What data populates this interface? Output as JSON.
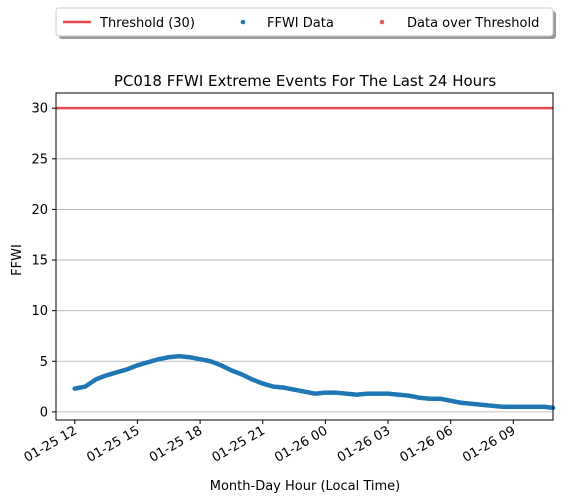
{
  "chart_data": {
    "type": "scatter",
    "title": "PC018 FFWI Extreme Events For The Last 24 Hours",
    "xlabel": "Month-Day Hour (Local Time)",
    "ylabel": "FFWI",
    "x_ticks": [
      "01-25 12",
      "01-25 15",
      "01-25 18",
      "01-25 21",
      "01-26 00",
      "01-26 03",
      "01-26 06",
      "01-26 09"
    ],
    "x_tick_hours": [
      12,
      15,
      18,
      21,
      24,
      27,
      30,
      33
    ],
    "xlim": [
      11.1,
      34.9
    ],
    "ylim": [
      -0.8,
      31.5
    ],
    "y_ticks": [
      0,
      5,
      10,
      15,
      20,
      25,
      30
    ],
    "grid": "horizontal",
    "legend": {
      "placement": "top-center",
      "entries": [
        {
          "label": "Threshold (30)",
          "kind": "line",
          "color": "#e8474b"
        },
        {
          "label": "FFWI Data",
          "kind": "marker",
          "color": "#1f77b4"
        },
        {
          "label": "Data over Threshold",
          "kind": "marker",
          "color": "#d95f5f"
        }
      ]
    },
    "threshold": {
      "value": 30,
      "color": "#e8474b"
    },
    "series": [
      {
        "name": "FFWI Data",
        "color": "#1f77b4",
        "points": [
          [
            12.0,
            2.3
          ],
          [
            12.5,
            2.5
          ],
          [
            13.0,
            3.2
          ],
          [
            13.5,
            3.6
          ],
          [
            14.0,
            3.9
          ],
          [
            14.5,
            4.2
          ],
          [
            15.0,
            4.6
          ],
          [
            15.5,
            4.9
          ],
          [
            16.0,
            5.2
          ],
          [
            16.5,
            5.4
          ],
          [
            17.0,
            5.5
          ],
          [
            17.5,
            5.4
          ],
          [
            18.0,
            5.2
          ],
          [
            18.5,
            5.0
          ],
          [
            19.0,
            4.6
          ],
          [
            19.5,
            4.1
          ],
          [
            20.0,
            3.7
          ],
          [
            20.5,
            3.2
          ],
          [
            21.0,
            2.8
          ],
          [
            21.5,
            2.5
          ],
          [
            22.0,
            2.4
          ],
          [
            22.5,
            2.2
          ],
          [
            23.0,
            2.0
          ],
          [
            23.5,
            1.8
          ],
          [
            24.0,
            1.9
          ],
          [
            24.5,
            1.9
          ],
          [
            25.0,
            1.8
          ],
          [
            25.5,
            1.7
          ],
          [
            26.0,
            1.8
          ],
          [
            26.5,
            1.8
          ],
          [
            27.0,
            1.8
          ],
          [
            27.5,
            1.7
          ],
          [
            28.0,
            1.6
          ],
          [
            28.5,
            1.4
          ],
          [
            29.0,
            1.3
          ],
          [
            29.5,
            1.3
          ],
          [
            30.0,
            1.1
          ],
          [
            30.5,
            0.9
          ],
          [
            31.0,
            0.8
          ],
          [
            31.5,
            0.7
          ],
          [
            32.0,
            0.6
          ],
          [
            32.5,
            0.5
          ],
          [
            33.0,
            0.5
          ],
          [
            33.5,
            0.5
          ],
          [
            34.0,
            0.5
          ],
          [
            34.5,
            0.5
          ],
          [
            34.9,
            0.4
          ]
        ]
      },
      {
        "name": "Data over Threshold",
        "color": "#d95f5f",
        "points": []
      }
    ]
  }
}
